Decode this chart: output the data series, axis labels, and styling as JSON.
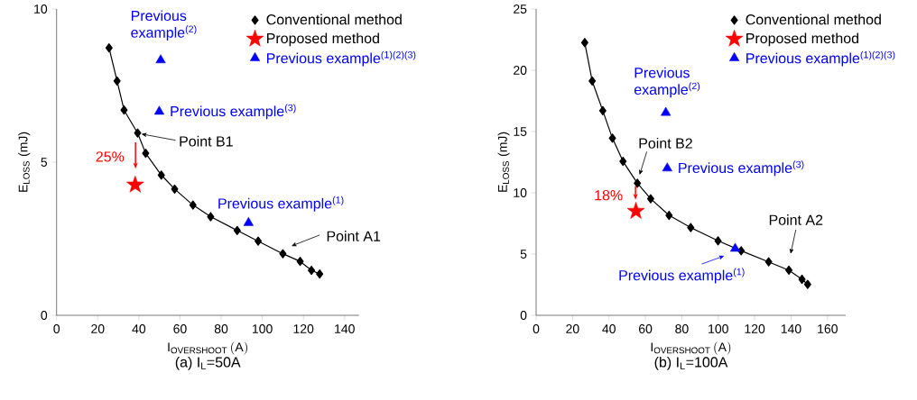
{
  "chart_data": [
    {
      "type": "line",
      "title": "(a) I$_{L}$=50A",
      "xlabel": "\\mathrm{I}_{\\mathrm{OVERSHOOT}}\\,(\\mathrm{A})",
      "ylabel": "E$_{LOSS}$ (mJ)",
      "xlim": [
        0,
        147
      ],
      "ylim": [
        0,
        10
      ],
      "xticks": [
        0,
        20,
        40,
        60,
        80,
        100,
        120,
        140
      ],
      "yticks": [
        0,
        5,
        10
      ],
      "legend": "top right",
      "series": [
        {
          "name": "Conventional method",
          "marker": "diamond",
          "color": "#000000",
          "x": [
            25.5,
            29.4,
            32.8,
            39.4,
            43.3,
            50.9,
            57.4,
            66.3,
            74.9,
            87.8,
            98.0,
            110.0,
            118.4,
            123.9,
            127.9
          ],
          "values": [
            8.73,
            7.65,
            6.7,
            5.95,
            5.29,
            4.58,
            4.12,
            3.6,
            3.22,
            2.77,
            2.42,
            2.01,
            1.76,
            1.47,
            1.35
          ]
        },
        {
          "name": "Proposed method",
          "type": "scatter",
          "marker": "star",
          "color": "#ff0000",
          "x": [
            38.2
          ],
          "values": [
            4.26
          ]
        },
        {
          "name": "Previous example$^{(1)(2)(3)}$",
          "type": "scatter",
          "marker": "triangle",
          "color": "#0000ff",
          "x": [
            93.3,
            50.6,
            49.9
          ],
          "values": [
            3.02,
            8.33,
            6.65
          ]
        }
      ],
      "annotations": [
        {
          "text": "Previous example$^{(2)}$",
          "x": 50.6,
          "y": 8.33
        },
        {
          "text": "Previous example$^{(3)}$",
          "x": 49.9,
          "y": 6.65
        },
        {
          "text": "Point B1",
          "x": 39.4,
          "y": 5.95
        },
        "25%",
        {
          "text": "Previous example$^{(1)}$",
          "x": 93.3,
          "y": 3.02
        },
        "Point A1"
      ]
    },
    {
      "type": "line",
      "title": "(b) I$_{L}$=100A",
      "xlabel": "\\mathrm{I}_{\\mathrm{OVERSHOOT}}\\,(\\mathrm{A})",
      "ylabel": "E$_{LOSS}$ (mJ)",
      "xlim": [
        0,
        170
      ],
      "ylim": [
        0,
        25
      ],
      "xticks": [
        0,
        20,
        40,
        60,
        80,
        100,
        120,
        140,
        160
      ],
      "yticks": [
        0,
        5,
        10,
        15,
        20,
        25
      ],
      "legend": "top right",
      "series": [
        {
          "name": "Conventional method",
          "marker": "diamond",
          "color": "#000000",
          "x": [
            26.7,
            30.8,
            36.6,
            41.9,
            47.7,
            55.6,
            62.9,
            73.0,
            84.9,
            99.9,
            112.6,
            127.7,
            138.8,
            146.0,
            149.1
          ],
          "values": [
            22.26,
            19.12,
            16.7,
            14.46,
            12.57,
            10.78,
            9.51,
            8.16,
            7.16,
            6.08,
            5.27,
            4.36,
            3.68,
            2.94,
            2.52
          ]
        },
        {
          "name": "Proposed method",
          "type": "scatter",
          "marker": "star",
          "color": "#ff0000",
          "x": [
            54.8
          ],
          "values": [
            8.5
          ]
        },
        {
          "name": "Previous example$^{(1)(2)(3)}$",
          "type": "scatter",
          "marker": "triangle",
          "color": "#0000ff",
          "x": [
            109.3,
            71.2,
            72.0
          ],
          "values": [
            5.44,
            16.54,
            12.0
          ]
        }
      ],
      "annotations": [
        {
          "text": "Previous example$^{(2)}$",
          "x": 71.2,
          "y": 16.54
        },
        {
          "text": "Previous example$^{(3)}$",
          "x": 72.0,
          "y": 12.0
        },
        {
          "text": "Point B2",
          "x": 56.3,
          "y": 11.15
        },
        "18%",
        {
          "text": "Previous example$^{(1)}$",
          "x": 109.3,
          "y": 5.44
        },
        "Point A2"
      ]
    }
  ]
}
